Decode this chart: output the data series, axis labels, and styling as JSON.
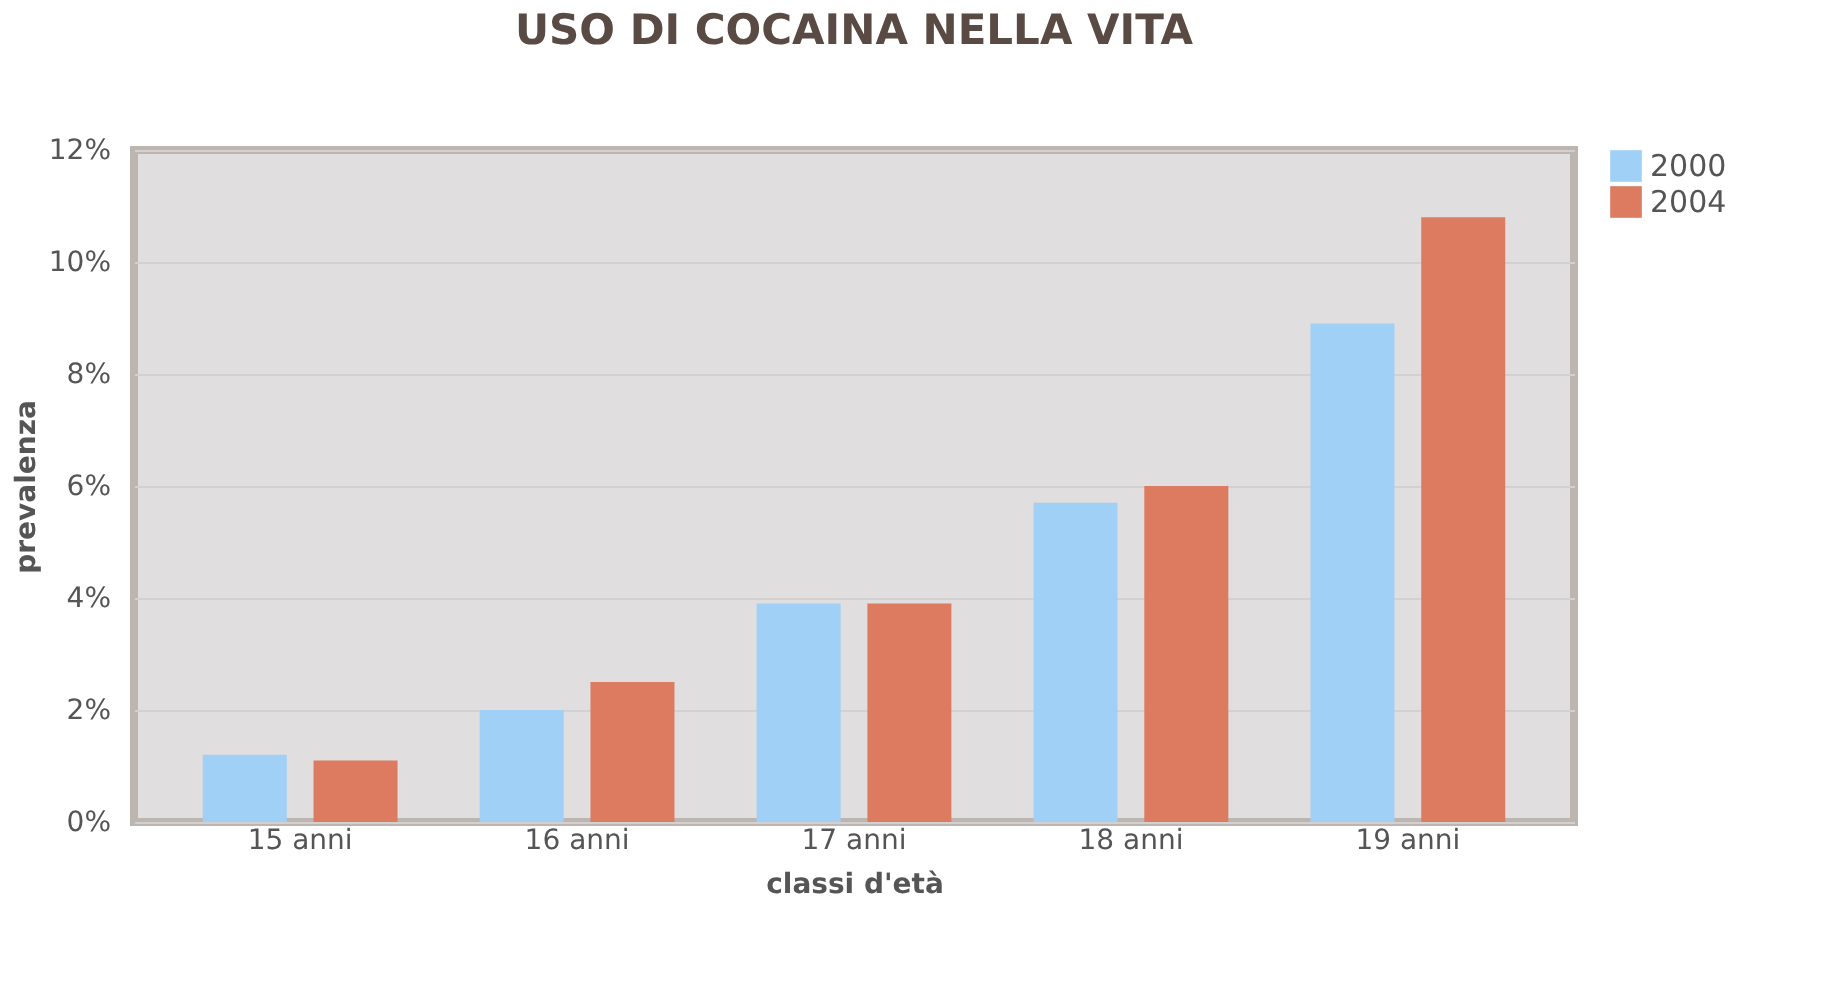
{
  "chart_data": {
    "type": "bar",
    "title": "USO DI COCAINA NELLA VITA",
    "xlabel": "classi d'età",
    "ylabel": "prevalenza",
    "categories": [
      "15 anni",
      "16 anni",
      "17 anni",
      "18 anni",
      "19 anni"
    ],
    "series": [
      {
        "name": "2000",
        "color": "#a0d0f5",
        "values": [
          1.2,
          2.0,
          3.9,
          5.7,
          8.9
        ]
      },
      {
        "name": "2004",
        "color": "#dc7b60",
        "values": [
          1.1,
          2.5,
          3.9,
          6.0,
          10.8
        ]
      }
    ],
    "ylim": [
      0,
      12
    ],
    "yticks": [
      {
        "value": 0,
        "label": "0%"
      },
      {
        "value": 2,
        "label": "2%"
      },
      {
        "value": 4,
        "label": "4%"
      },
      {
        "value": 6,
        "label": "6%"
      },
      {
        "value": 8,
        "label": "8%"
      },
      {
        "value": 10,
        "label": "10%"
      },
      {
        "value": 12,
        "label": "12%"
      }
    ],
    "grid": "y",
    "legend": "right"
  }
}
